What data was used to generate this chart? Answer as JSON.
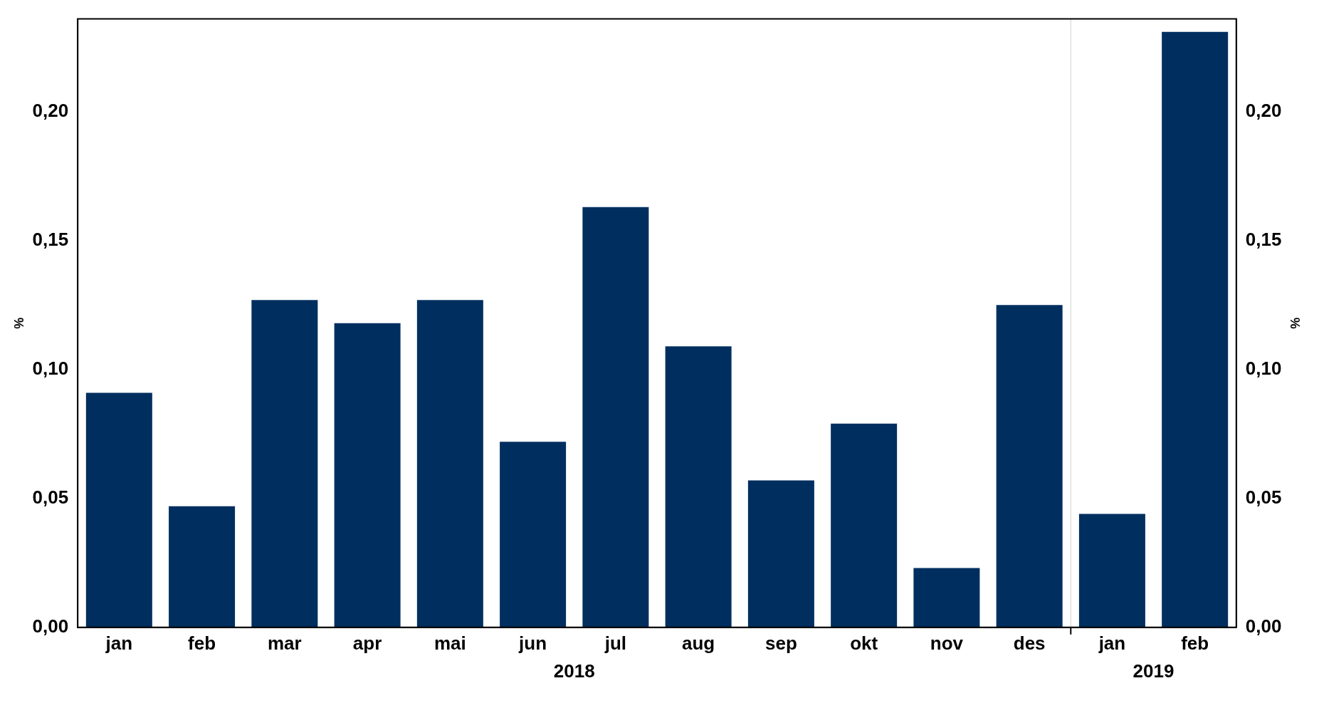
{
  "chart_data": {
    "type": "bar",
    "ylabel": "%",
    "y2label": "%",
    "categories": [
      "jan",
      "feb",
      "mar",
      "apr",
      "mai",
      "jun",
      "jul",
      "aug",
      "sep",
      "okt",
      "nov",
      "des",
      "jan",
      "feb"
    ],
    "values": [
      0.091,
      0.047,
      0.127,
      0.118,
      0.127,
      0.072,
      0.163,
      0.109,
      0.057,
      0.079,
      0.023,
      0.125,
      0.044,
      0.231
    ],
    "color": "#002f5f",
    "ylim": [
      0,
      0.236
    ],
    "yticks": [
      {
        "value": 0,
        "label": "0,00"
      },
      {
        "value": 0.05,
        "label": "0,05"
      },
      {
        "value": 0.1,
        "label": "0,10"
      },
      {
        "value": 0.15,
        "label": "0,15"
      },
      {
        "value": 0.2,
        "label": "0,20"
      }
    ],
    "y2lim": [
      0,
      0.236
    ],
    "y2ticks": [
      {
        "value": 0,
        "label": "0,00"
      },
      {
        "value": 0.05,
        "label": "0,05"
      },
      {
        "value": 0.1,
        "label": "0,10"
      },
      {
        "value": 0.15,
        "label": "0,15"
      },
      {
        "value": 0.2,
        "label": "0,20"
      }
    ],
    "annotations": [
      "2018",
      "2019"
    ],
    "grid": false,
    "legend": false
  }
}
